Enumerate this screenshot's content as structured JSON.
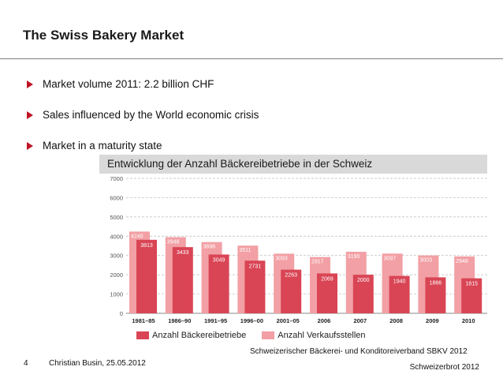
{
  "slide": {
    "title": "The Swiss Bakery Market",
    "bullets": [
      "Market volume 2011: 2.2 billion CHF",
      "Sales influenced by the World economic crisis",
      "Market in a maturity state"
    ],
    "page_number": "4",
    "footer_author": "Christian Busin, 25.05.2012",
    "source_line1": "Schweizerischer Bäckerei- und Konditoreiverband SBKV 2012",
    "source_line2": "Schweizerbrot 2012",
    "accent_color": "#c01426"
  },
  "chart_data": {
    "type": "bar",
    "title": "Entwicklung der Anzahl Bäckereibetriebe in der Schweiz",
    "categories": [
      "1981–85",
      "1986–90",
      "1991–95",
      "1996–00",
      "2001–05",
      "2006",
      "2007",
      "2008",
      "2009",
      "2010"
    ],
    "series": [
      {
        "name": "Anzahl Verkaufsstellen",
        "color": "#f2a0a5",
        "values": [
          4240,
          3948,
          3696,
          3511,
          3093,
          2917,
          3190,
          3097,
          3003,
          2948
        ]
      },
      {
        "name": "Anzahl Bäckereibetriebe",
        "color": "#d94555",
        "values": [
          3813,
          3433,
          3049,
          2731,
          2263,
          2069,
          2000,
          1940,
          1866,
          1815
        ]
      }
    ],
    "ylim": [
      0,
      7000
    ],
    "yticks": [
      "0",
      "1000",
      "2000",
      "3000",
      "4000",
      "5000",
      "6000",
      "7000"
    ],
    "grid": true,
    "legend": [
      {
        "label": "Anzahl Bäckereibetriebe",
        "color": "#d94555"
      },
      {
        "label": "Anzahl Verkaufsstellen",
        "color": "#f2a0a5"
      }
    ]
  }
}
